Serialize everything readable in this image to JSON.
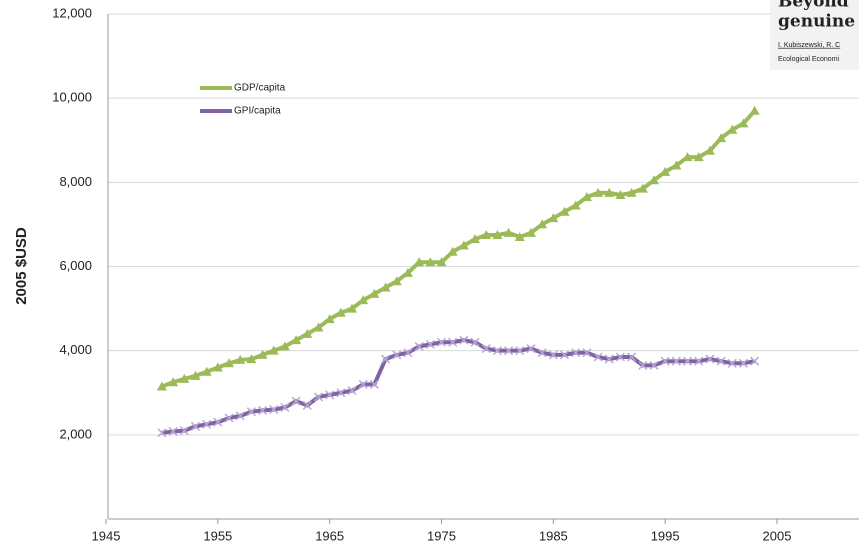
{
  "chart_data": {
    "type": "line",
    "y_label": "2005 $USD",
    "x": [
      1950,
      1951,
      1952,
      1953,
      1954,
      1955,
      1956,
      1957,
      1958,
      1959,
      1960,
      1961,
      1962,
      1963,
      1964,
      1965,
      1966,
      1967,
      1968,
      1969,
      1970,
      1971,
      1972,
      1973,
      1974,
      1975,
      1976,
      1977,
      1978,
      1979,
      1980,
      1981,
      1982,
      1983,
      1984,
      1985,
      1986,
      1987,
      1988,
      1989,
      1990,
      1991,
      1992,
      1993,
      1994,
      1995,
      1996,
      1997,
      1998,
      1999,
      2000,
      2001,
      2002,
      2003
    ],
    "series": [
      {
        "name": "GDP/capita",
        "color": "#9bbb59",
        "values": [
          3150,
          3250,
          3330,
          3400,
          3500,
          3600,
          3700,
          3780,
          3800,
          3900,
          4000,
          4100,
          4250,
          4400,
          4550,
          4750,
          4900,
          5000,
          5200,
          5350,
          5500,
          5650,
          5850,
          6100,
          6100,
          6100,
          6350,
          6500,
          6650,
          6750,
          6750,
          6800,
          6700,
          6800,
          7000,
          7150,
          7300,
          7450,
          7650,
          7750,
          7750,
          7700,
          7750,
          7850,
          8050,
          8250,
          8400,
          8600,
          8600,
          8750,
          9050,
          9250,
          9400,
          9700
        ]
      },
      {
        "name": "GPI/capita",
        "color": "#8064a2",
        "values": [
          2050,
          2080,
          2100,
          2200,
          2250,
          2300,
          2400,
          2450,
          2550,
          2580,
          2600,
          2650,
          2800,
          2700,
          2900,
          2950,
          3000,
          3050,
          3200,
          3200,
          3800,
          3900,
          3950,
          4100,
          4150,
          4200,
          4200,
          4250,
          4200,
          4050,
          4000,
          4000,
          4000,
          4050,
          3950,
          3900,
          3900,
          3950,
          3950,
          3850,
          3800,
          3850,
          3850,
          3650,
          3650,
          3750,
          3750,
          3750,
          3750,
          3800,
          3750,
          3700,
          3700,
          3750
        ]
      }
    ],
    "xlim": [
      1945,
      2005
    ],
    "xticks": [
      1945,
      1955,
      1965,
      1975,
      1985,
      1995,
      2005
    ],
    "ylim": [
      0,
      12000
    ],
    "yticks": [
      {
        "value": 2000,
        "label": "2,000"
      },
      {
        "value": 4000,
        "label": "4,000"
      },
      {
        "value": 6000,
        "label": "6,000"
      },
      {
        "value": 8000,
        "label": "8,000"
      },
      {
        "value": 10000,
        "label": "10,000"
      },
      {
        "value": 12000,
        "label": "12,000"
      }
    ],
    "grid": true
  },
  "overlay": {
    "title_lines": [
      "Beyond",
      "genuine"
    ],
    "authors": "I. Kubiszewski, R. C",
    "journal": "Ecological Economi"
  }
}
